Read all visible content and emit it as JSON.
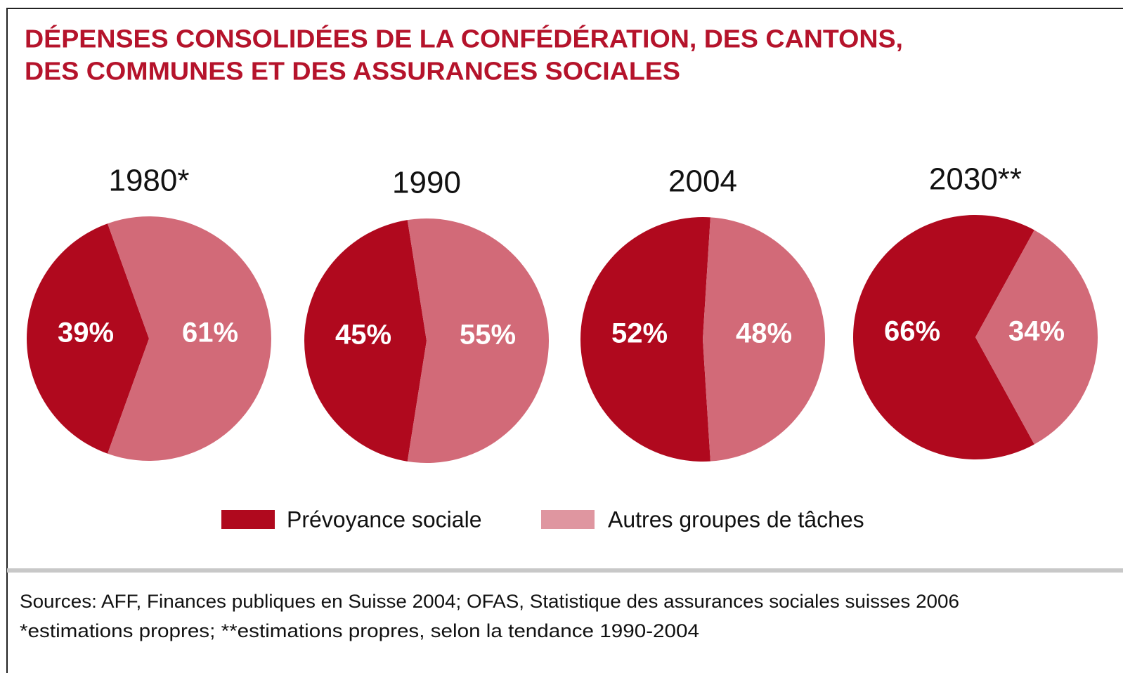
{
  "title": [
    "DÉPENSES CONSOLIDÉES DE LA CONFÉDÉRATION, DES CANTONS,",
    "DES COMMUNES ET DES ASSURANCES SOCIALES"
  ],
  "chart_data": [
    {
      "type": "pie",
      "title": "1980*",
      "categories": [
        "Prévoyance sociale",
        "Autres groupes de tâches"
      ],
      "values": [
        39,
        61
      ],
      "value_labels": [
        "39%",
        "61%"
      ],
      "colors": [
        "#b0091e",
        "#d26a78"
      ]
    },
    {
      "type": "pie",
      "title": "1990",
      "categories": [
        "Prévoyance sociale",
        "Autres groupes de tâches"
      ],
      "values": [
        45,
        55
      ],
      "value_labels": [
        "45%",
        "55%"
      ],
      "colors": [
        "#b0091e",
        "#d26a78"
      ]
    },
    {
      "type": "pie",
      "title": "2004",
      "categories": [
        "Prévoyance sociale",
        "Autres groupes de tâches"
      ],
      "values": [
        52,
        48
      ],
      "value_labels": [
        "52%",
        "48%"
      ],
      "colors": [
        "#b0091e",
        "#d26a78"
      ]
    },
    {
      "type": "pie",
      "title": "2030**",
      "categories": [
        "Prévoyance sociale",
        "Autres groupes de tâches"
      ],
      "values": [
        66,
        34
      ],
      "value_labels": [
        "66%",
        "34%"
      ],
      "colors": [
        "#b0091e",
        "#d26a78"
      ]
    }
  ],
  "sources": [
    "Sources: AFF, Finances publiques en Suisse 2004; OFAS, Statistique des assurances sociales suisses 2006",
    "*estimations propres; **estimations propres, selon la tendance 1990-2004"
  ]
}
